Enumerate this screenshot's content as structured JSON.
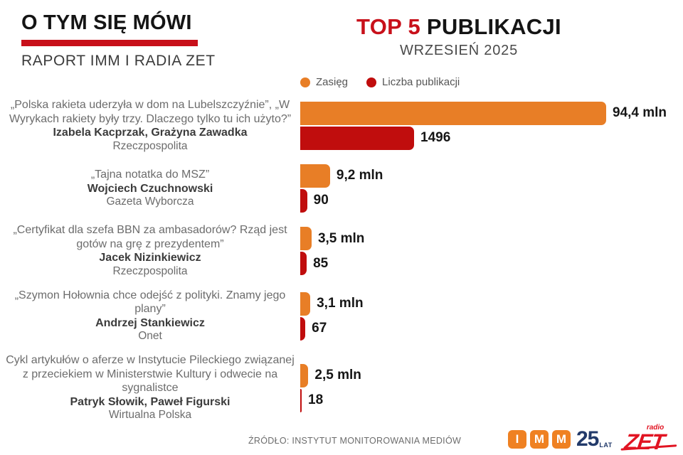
{
  "header": {
    "program_title": "O TYM SIĘ MÓWI",
    "program_subtitle": "RAPORT IMM I RADIA ZET",
    "title_accent": "TOP 5",
    "title_rest": " PUBLIKACJI",
    "subtitle": "WRZESIEŃ 2025"
  },
  "legend": {
    "reach_label": "Zasięg",
    "publications_label": "Liczba publikacji"
  },
  "colors": {
    "reach": "#E87E26",
    "publications": "#C00D0D",
    "accent_red": "#C8101A",
    "imm_orange": "#EF8122",
    "imm_navy": "#223A6A",
    "zet_red": "#E11422"
  },
  "chart_data": {
    "type": "bar",
    "orientation": "horizontal",
    "title": "TOP 5 PUBLIKACJI",
    "subtitle": "WRZESIEŃ 2025",
    "legend_position": "top",
    "series": [
      {
        "name": "Zasięg",
        "color": "#E87E26",
        "unit": "mln"
      },
      {
        "name": "Liczba publikacji",
        "color": "#C00D0D",
        "unit": "count"
      }
    ],
    "reach_axis_max_mln": 94.4,
    "publications_axis_max": 1496,
    "rows": [
      {
        "title": "„Polska rakieta uderzyła w dom na Lubelszczyźnie”, „W Wyrykach rakiety były trzy. Dlaczego tylko tu ich użyto?”",
        "authors": "Izabela Kacprzak, Grażyna Zawadka",
        "source": "Rzeczpospolita",
        "reach_mln": 94.4,
        "reach_label": "94,4 mln",
        "publications": 1496,
        "publications_label": "1496"
      },
      {
        "title": "„Tajna notatka do MSZ”",
        "authors": "Wojciech Czuchnowski",
        "source": "Gazeta Wyborcza",
        "reach_mln": 9.2,
        "reach_label": "9,2 mln",
        "publications": 90,
        "publications_label": "90"
      },
      {
        "title": "„Certyfikat dla szefa BBN za ambasadorów? Rząd jest gotów na grę z prezydentem”",
        "authors": "Jacek Nizinkiewicz",
        "source": "Rzeczpospolita",
        "reach_mln": 3.5,
        "reach_label": "3,5 mln",
        "publications": 85,
        "publications_label": "85"
      },
      {
        "title": "„Szymon Hołownia chce odejść z polityki. Znamy jego plany”",
        "authors": "Andrzej Stankiewicz",
        "source": "Onet",
        "reach_mln": 3.1,
        "reach_label": "3,1 mln",
        "publications": 67,
        "publications_label": "67"
      },
      {
        "title": "Cykl artykułów o aferze w Instytucie Pileckiego związanej z przeciekiem w Ministerstwie Kultury i odwecie na sygnalistce",
        "authors": "Patryk Słowik, Paweł Figurski",
        "source": "Wirtualna Polska",
        "reach_mln": 2.5,
        "reach_label": "2,5 mln",
        "publications": 18,
        "publications_label": "18"
      }
    ]
  },
  "footer": {
    "source": "ŹRÓDŁO: INSTYTUT MONITOROWANIA MEDIÓW",
    "imm_letters": {
      "0": "I",
      "1": "M",
      "2": "M"
    },
    "imm_25": "25",
    "imm_lat": "LAT",
    "zet_radio": "radio",
    "zet_name": "ZET"
  }
}
